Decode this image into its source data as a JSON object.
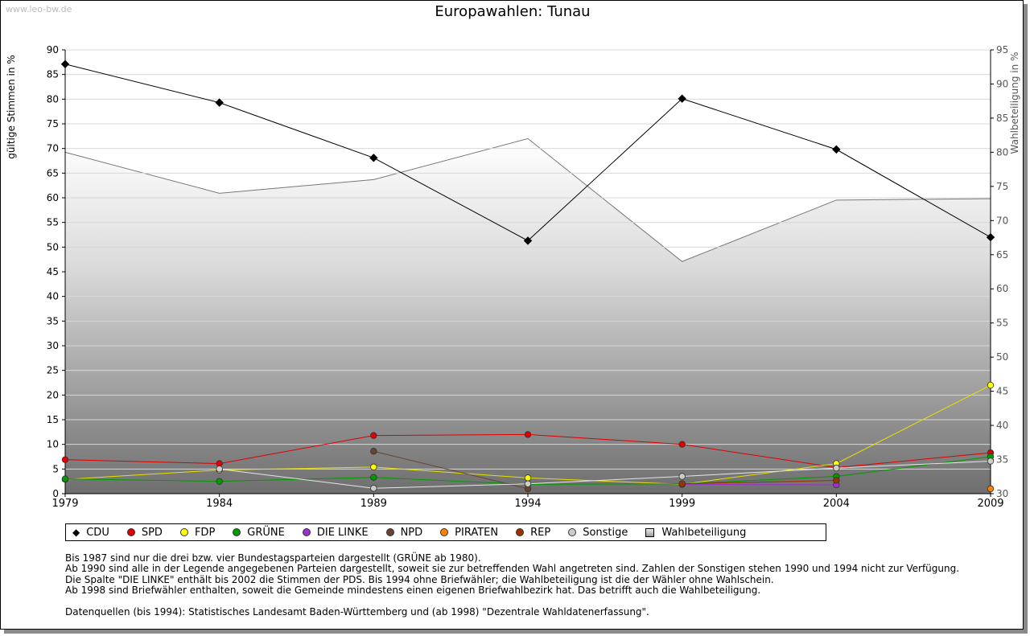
{
  "watermark": "www.leo-bw.de",
  "title": "Europawahlen: Tunau",
  "chart_data": {
    "type": "line",
    "title": "Europawahlen: Tunau",
    "ylabel": "gültige Stimmen in %",
    "y2label": "Wahlbeteiligung in %",
    "x": [
      "1979",
      "1984",
      "1989",
      "1994",
      "1999",
      "2004",
      "2009"
    ],
    "ylim": [
      0,
      90
    ],
    "y2lim": [
      30,
      95
    ],
    "yticks": [
      "0",
      "5",
      "10",
      "15",
      "20",
      "25",
      "30",
      "35",
      "40",
      "45",
      "50",
      "55",
      "60",
      "65",
      "70",
      "75",
      "80",
      "85",
      "90"
    ],
    "y2ticks": [
      "30",
      "35",
      "40",
      "45",
      "50",
      "55",
      "60",
      "65",
      "70",
      "75",
      "80",
      "85",
      "90",
      "95"
    ],
    "series": [
      {
        "name": "CDU",
        "color": "#000000",
        "values": [
          87.1,
          79.3,
          68.1,
          51.3,
          80.1,
          69.8,
          52.0
        ]
      },
      {
        "name": "SPD",
        "color": "#e00000",
        "values": [
          6.9,
          6.1,
          11.8,
          12.0,
          10.0,
          5.3,
          8.3
        ]
      },
      {
        "name": "FDP",
        "color": "#ffff00",
        "values": [
          2.9,
          4.8,
          5.4,
          3.2,
          1.9,
          6.1,
          22.0
        ]
      },
      {
        "name": "GRÜNE",
        "color": "#009900",
        "values": [
          3.0,
          2.5,
          3.3,
          1.9,
          2.0,
          3.5,
          7.5
        ]
      },
      {
        "name": "DIE LINKE",
        "color": "#9933cc",
        "values": [
          null,
          null,
          null,
          null,
          1.9,
          1.8,
          null
        ]
      },
      {
        "name": "NPD",
        "color": "#664433",
        "values": [
          null,
          null,
          8.6,
          1.0,
          null,
          null,
          null
        ]
      },
      {
        "name": "PIRATEN",
        "color": "#ff8000",
        "values": [
          null,
          null,
          null,
          null,
          null,
          null,
          1.0
        ]
      },
      {
        "name": "REP",
        "color": "#993300",
        "values": [
          null,
          null,
          null,
          null,
          2.0,
          2.7,
          null
        ]
      },
      {
        "name": "Sonstige",
        "color": "#cccccc",
        "values": [
          null,
          5.0,
          1.1,
          2.0,
          3.5,
          5.2,
          6.6
        ]
      }
    ],
    "turnout": {
      "name": "Wahlbeteiligung",
      "values": [
        80.0,
        74.0,
        76.0,
        82.0,
        64.0,
        73.0,
        73.2
      ]
    }
  },
  "notes": [
    "Bis 1987 sind nur die drei bzw. vier Bundestagsparteien dargestellt (GRÜNE ab 1980).",
    "Ab 1990 sind alle in der Legende angegebenen Parteien dargestellt, soweit sie zur betreffenden Wahl angetreten sind. Zahlen der Sonstigen stehen 1990 und 1994 nicht zur Verfügung.",
    "Die Spalte \"DIE LINKE\" enthält bis 2002 die Stimmen der PDS. Bis 1994 ohne Briefwähler; die Wahlbeteiligung ist die der Wähler ohne Wahlschein.",
    "Ab 1998 sind Briefwähler enthalten, soweit die Gemeinde mindestens einen eigenen Briefwahlbezirk hat. Das betrifft auch die Wahlbeteiligung.",
    "",
    "Datenquellen (bis 1994): Statistisches Landesamt Baden-Württemberg und (ab 1998) \"Dezentrale Wahldatenerfassung\"."
  ]
}
